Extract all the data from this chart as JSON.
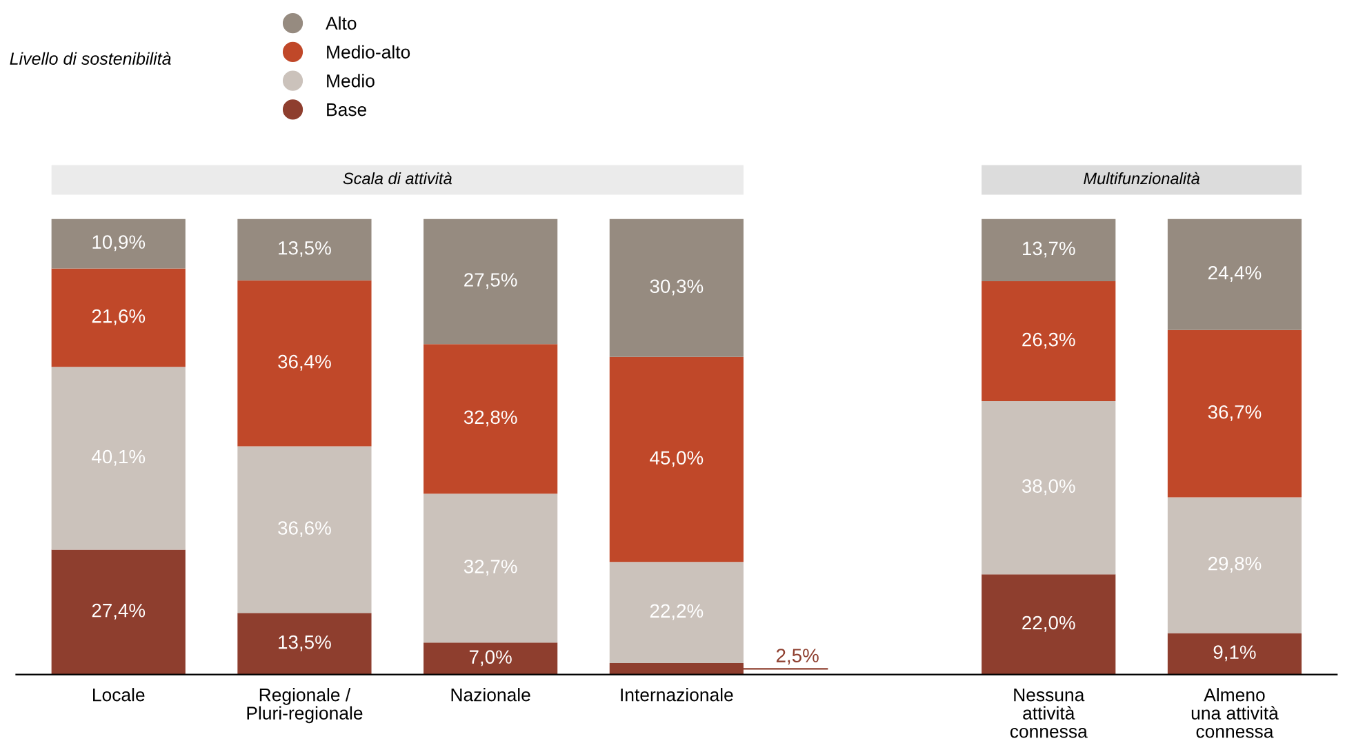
{
  "chart_data": {
    "type": "bar",
    "stacked": true,
    "legend": "top left",
    "legend_title": "Livello di sostenibilità",
    "categories": [
      "Locale",
      "Regionale /\nPluri-regionale",
      "Nazionale",
      "Internazionale",
      null,
      "Nessuna\nattività\nconnessa",
      "Almeno\nuna attività\nconnessa"
    ],
    "series": [
      {
        "name": "Base",
        "color": "#8e3e2e",
        "values": [
          27.4,
          13.5,
          7.0,
          2.5,
          null,
          22.0,
          9.1
        ],
        "value_labels": [
          "27,4%",
          "13,5%",
          "7,0%",
          "2,5%",
          null,
          "22,0%",
          "9,1%"
        ]
      },
      {
        "name": "Medio",
        "color": "#cbc2bb",
        "values": [
          40.1,
          36.6,
          32.7,
          22.2,
          null,
          38.0,
          29.8
        ],
        "value_labels": [
          "40,1%",
          "36,6%",
          "32,7%",
          "22,2%",
          null,
          "38,0%",
          "29,8%"
        ]
      },
      {
        "name": "Medio-alto",
        "color": "#c04829",
        "values": [
          21.6,
          36.4,
          32.8,
          45.0,
          null,
          26.3,
          36.7
        ],
        "value_labels": [
          "21,6%",
          "36,4%",
          "32,8%",
          "45,0%",
          null,
          "26,3%",
          "36,7%"
        ]
      },
      {
        "name": "Alto",
        "color": "#968b80",
        "values": [
          10.9,
          13.5,
          27.5,
          30.3,
          null,
          13.7,
          24.4
        ],
        "value_labels": [
          "10,9%",
          "13,5%",
          "27,5%",
          "30,3%",
          null,
          "13,7%",
          "24,4%"
        ]
      }
    ],
    "ylim": [
      0,
      100
    ],
    "tick_labels": "x",
    "annotations": [
      "Scala di attività",
      "Multifunzionalità"
    ]
  }
}
